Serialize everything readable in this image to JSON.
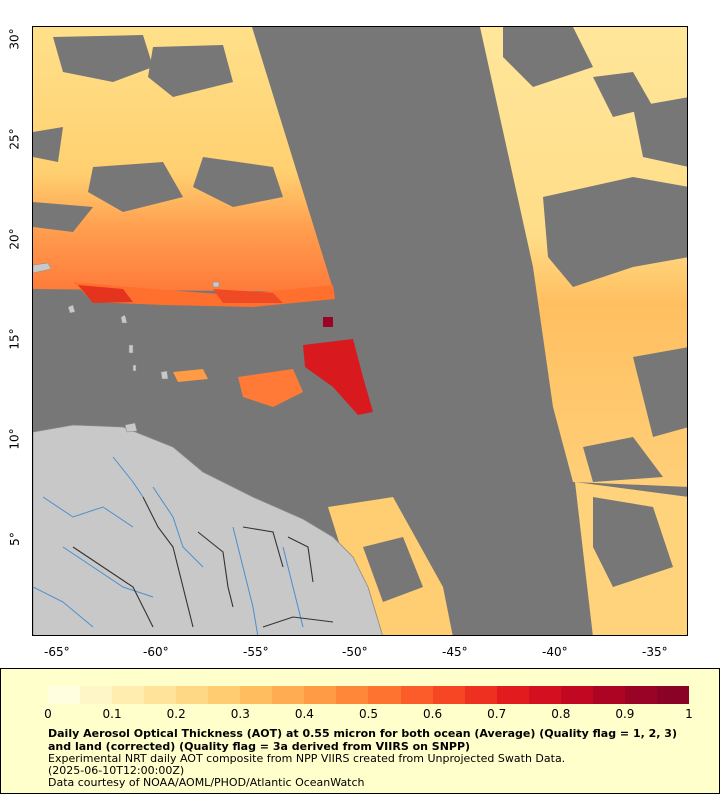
{
  "map": {
    "x_tick_labels": [
      "-65°",
      "-60°",
      "-55°",
      "-50°",
      "-45°",
      "-40°",
      "-35°"
    ],
    "y_tick_labels": [
      "30°",
      "25°",
      "20°",
      "15°",
      "10°",
      "5°"
    ]
  },
  "colors": {
    "no_data": "#777777",
    "land": "#c8c8c8",
    "rivers": "#4a90d0",
    "borders": "#333333",
    "legend_background": "#ffffcc"
  },
  "colorbar": {
    "tick_labels": [
      "0",
      "0.1",
      "0.2",
      "0.3",
      "0.4",
      "0.5",
      "0.6",
      "0.7",
      "0.8",
      "0.9",
      "1"
    ],
    "colors": [
      "#ffffe0",
      "#fff6c8",
      "#ffedb0",
      "#ffe39a",
      "#ffd885",
      "#ffcc72",
      "#ffbd60",
      "#ffac52",
      "#ff9a45",
      "#ff873a",
      "#ff7330",
      "#fc5c29",
      "#f64624",
      "#ee3020",
      "#e21c1e",
      "#d40f20",
      "#c10722",
      "#ad0424",
      "#990326",
      "#8a0226"
    ]
  },
  "legend": {
    "title": "Daily Aerosol Optical Thickness (AOT) at 0.55 micron for both ocean (Average) (Quality flag = 1, 2, 3) and land (corrected) (Quality flag = 3a derived from VIIRS on SNPP)",
    "line1": "Experimental NRT daily AOT composite from NPP VIIRS created from Unprojected Swath Data.",
    "line2": "(2025-06-10T12:00:00Z)",
    "line3": "Data courtesy of NOAA/AOML/PHOD/Atlantic OceanWatch"
  }
}
